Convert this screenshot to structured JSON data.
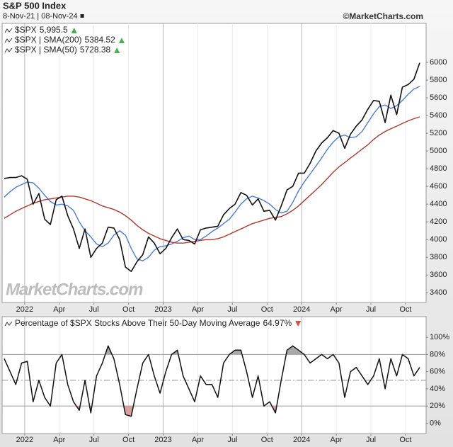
{
  "header": {
    "title": "S&P 500 Index",
    "subtitle": "8-Nov-21 | 08-Nov-24",
    "source": "©MarketCharts.com"
  },
  "chart_data": [
    {
      "type": "line",
      "watermark": "MarketCharts.com",
      "x": [
        0,
        0.5,
        1,
        1.5,
        2,
        2.5,
        3,
        3.5,
        4,
        4.5,
        5,
        5.5,
        6,
        6.5,
        7,
        7.5,
        8,
        8.5,
        9,
        9.5,
        10,
        10.5,
        11,
        11.5,
        12,
        12.5,
        13,
        13.5,
        14,
        14.5,
        15,
        15.5,
        16,
        16.5,
        17,
        17.5,
        18,
        18.5,
        19,
        19.5,
        20,
        20.5,
        21,
        21.5,
        22,
        22.5,
        23,
        23.5,
        24,
        24.5,
        25,
        25.5,
        26,
        26.5,
        27,
        27.5,
        28,
        28.5,
        29,
        29.5,
        30,
        30.5,
        31,
        31.5,
        32,
        32.5,
        33,
        33.5,
        34,
        34.5,
        35,
        35.5,
        36
      ],
      "xlim": [
        0,
        36
      ],
      "xticks": [
        {
          "value": 1.77,
          "label": "2022"
        },
        {
          "value": 4.77,
          "label": "Apr"
        },
        {
          "value": 7.77,
          "label": "Jul"
        },
        {
          "value": 10.77,
          "label": "Oct"
        },
        {
          "value": 13.77,
          "label": "2023"
        },
        {
          "value": 16.77,
          "label": "Apr"
        },
        {
          "value": 19.77,
          "label": "Jul"
        },
        {
          "value": 22.77,
          "label": "Oct"
        },
        {
          "value": 25.77,
          "label": "2024"
        },
        {
          "value": 28.77,
          "label": "Apr"
        },
        {
          "value": 31.77,
          "label": "Jul"
        },
        {
          "value": 34.77,
          "label": "Oct"
        }
      ],
      "ylim": [
        3290,
        6440
      ],
      "yticks": [
        3400,
        3600,
        3800,
        4000,
        4200,
        4400,
        4600,
        4800,
        5000,
        5200,
        5400,
        5600,
        5800,
        6000
      ],
      "series": [
        {
          "name": "$SPX",
          "last_label": "5,995.5",
          "change": "up",
          "color": "#111111",
          "width": 1.6,
          "values": [
            4690,
            4700,
            4700,
            4720,
            4680,
            4400,
            4520,
            4230,
            4170,
            4450,
            4490,
            4270,
            4120,
            3900,
            4120,
            3800,
            3900,
            3960,
            4140,
            4130,
            4000,
            3690,
            3640,
            3750,
            3830,
            4030,
            3960,
            3840,
            3900,
            4020,
            4120,
            4000,
            3990,
            3950,
            4110,
            4130,
            4140,
            4150,
            4280,
            4350,
            4400,
            4530,
            4500,
            4390,
            4460,
            4320,
            4330,
            4220,
            4380,
            4560,
            4600,
            4750,
            4750,
            4860,
            5000,
            5090,
            5150,
            5230,
            5200,
            5030,
            5190,
            5280,
            5350,
            5470,
            5570,
            5560,
            5320,
            5630,
            5410,
            5720,
            5750,
            5810,
            5995.5
          ]
        },
        {
          "name": "$SPX | SMA(200)",
          "last_label": "5384.52",
          "change": "up",
          "color": "#b0392f",
          "width": 1.4,
          "values": [
            4240,
            4280,
            4320,
            4350,
            4380,
            4410,
            4430,
            4450,
            4460,
            4470,
            4480,
            4490,
            4490,
            4480,
            4460,
            4440,
            4410,
            4380,
            4360,
            4340,
            4310,
            4270,
            4220,
            4160,
            4110,
            4070,
            4040,
            4010,
            3990,
            3970,
            3960,
            3960,
            3970,
            3980,
            3990,
            4000,
            4000,
            4010,
            4030,
            4060,
            4090,
            4120,
            4150,
            4180,
            4200,
            4220,
            4240,
            4250,
            4260,
            4290,
            4330,
            4380,
            4440,
            4500,
            4560,
            4620,
            4690,
            4760,
            4820,
            4870,
            4920,
            4970,
            5020,
            5070,
            5130,
            5180,
            5220,
            5250,
            5280,
            5310,
            5340,
            5365,
            5384.52
          ]
        },
        {
          "name": "$SPX | SMA(50)",
          "last_label": "5728.38",
          "change": "up",
          "color": "#4a7bd8",
          "width": 1.4,
          "values": [
            4480,
            4540,
            4590,
            4620,
            4650,
            4640,
            4580,
            4500,
            4430,
            4390,
            4400,
            4380,
            4330,
            4200,
            4100,
            4030,
            3950,
            3920,
            3960,
            4050,
            4100,
            4050,
            3900,
            3780,
            3760,
            3800,
            3880,
            3920,
            3930,
            3950,
            3980,
            4020,
            4040,
            4000,
            4000,
            4040,
            4090,
            4130,
            4180,
            4230,
            4310,
            4400,
            4460,
            4490,
            4470,
            4440,
            4400,
            4340,
            4300,
            4320,
            4420,
            4550,
            4650,
            4740,
            4830,
            4920,
            5020,
            5100,
            5160,
            5180,
            5150,
            5160,
            5220,
            5320,
            5420,
            5500,
            5520,
            5480,
            5510,
            5570,
            5640,
            5700,
            5728.38
          ]
        }
      ]
    },
    {
      "type": "line",
      "x": [
        0,
        0.5,
        1,
        1.5,
        2,
        2.5,
        3,
        3.5,
        4,
        4.5,
        5,
        5.5,
        6,
        6.5,
        7,
        7.5,
        8,
        8.5,
        9,
        9.5,
        10,
        10.5,
        11,
        11.5,
        12,
        12.5,
        13,
        13.5,
        14,
        14.5,
        15,
        15.5,
        16,
        16.5,
        17,
        17.5,
        18,
        18.5,
        19,
        19.5,
        20,
        20.5,
        21,
        21.5,
        22,
        22.5,
        23,
        23.5,
        24,
        24.5,
        25,
        25.5,
        26,
        26.5,
        27,
        27.5,
        28,
        28.5,
        29,
        29.5,
        30,
        30.5,
        31,
        31.5,
        32,
        32.5,
        33,
        33.5,
        34,
        34.5,
        35,
        35.5,
        36
      ],
      "xlim": [
        0,
        36
      ],
      "xticks": [
        {
          "value": 1.77,
          "label": "2022"
        },
        {
          "value": 4.77,
          "label": "Apr"
        },
        {
          "value": 7.77,
          "label": "Jul"
        },
        {
          "value": 10.77,
          "label": "Oct"
        },
        {
          "value": 13.77,
          "label": "2023"
        },
        {
          "value": 16.77,
          "label": "Apr"
        },
        {
          "value": 19.77,
          "label": "Jul"
        },
        {
          "value": 22.77,
          "label": "Oct"
        },
        {
          "value": 25.77,
          "label": "2024"
        },
        {
          "value": 28.77,
          "label": "Apr"
        },
        {
          "value": 31.77,
          "label": "Jul"
        },
        {
          "value": 34.77,
          "label": "Oct"
        }
      ],
      "ylim": [
        -12,
        124
      ],
      "yticks": [
        {
          "value": 0,
          "label": "0%"
        },
        {
          "value": 20,
          "label": "20%"
        },
        {
          "value": 40,
          "label": "40%"
        },
        {
          "value": 60,
          "label": "60%"
        },
        {
          "value": 80,
          "label": "80%"
        },
        {
          "value": 100,
          "label": "100%"
        }
      ],
      "reference_lines": [
        {
          "value": 80,
          "style": "solid"
        },
        {
          "value": 50,
          "style": "dashdot"
        },
        {
          "value": 20,
          "style": "solid"
        }
      ],
      "shade_above": {
        "value": 80,
        "color": "#a9a9a9"
      },
      "shade_below": {
        "value": 20,
        "color": "#d9a0a0"
      },
      "series": [
        {
          "name": "Percentage of $SPX Stocks Above Their 50-Day Moving Average",
          "last_label": "64.97%",
          "change": "down",
          "color": "#111111",
          "width": 1.5,
          "values": [
            75,
            60,
            45,
            70,
            72,
            25,
            50,
            30,
            20,
            70,
            80,
            45,
            25,
            15,
            50,
            12,
            55,
            70,
            90,
            75,
            45,
            10,
            8,
            40,
            70,
            80,
            55,
            35,
            60,
            80,
            85,
            55,
            40,
            25,
            55,
            45,
            45,
            30,
            70,
            80,
            85,
            85,
            60,
            30,
            55,
            20,
            25,
            12,
            50,
            85,
            90,
            85,
            80,
            70,
            75,
            80,
            75,
            80,
            70,
            30,
            60,
            65,
            55,
            45,
            55,
            75,
            40,
            75,
            55,
            80,
            75,
            55,
            64.97
          ]
        }
      ]
    }
  ]
}
